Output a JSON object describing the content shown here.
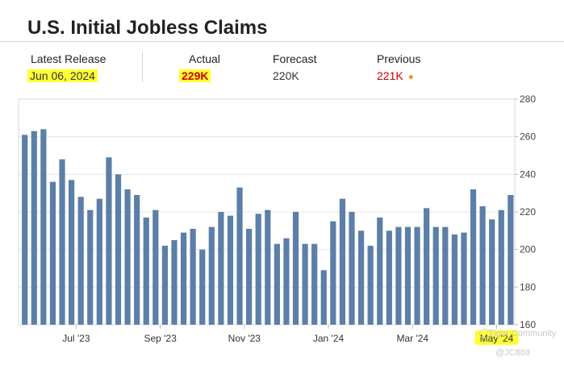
{
  "title": "U.S. Initial Jobless Claims",
  "stats": {
    "latest_release_label": "Latest Release",
    "latest_release_value": "Jun 06, 2024",
    "actual_label": "Actual",
    "actual_value": "229K",
    "forecast_label": "Forecast",
    "forecast_value": "220K",
    "previous_label": "Previous",
    "previous_value": "221K",
    "previous_dot": "●"
  },
  "watermark": {
    "line1": "Tiger Community",
    "line2": "@JC888"
  },
  "colors": {
    "bar": "#5b7fa8",
    "highlight": "#ffff33",
    "negative_red": "#d00000",
    "grid": "#e6e6e6"
  },
  "chart_data": {
    "type": "bar",
    "x_tick_labels": [
      "Jul '23",
      "Sep '23",
      "Nov '23",
      "Jan '24",
      "Mar '24",
      "May '24"
    ],
    "highlighted_x_tick": "May '24",
    "x_tick_after_bar": [
      5,
      14,
      23,
      32,
      41,
      50
    ],
    "y_ticks": [
      160,
      180,
      200,
      220,
      240,
      260,
      280
    ],
    "ylim": [
      160,
      280
    ],
    "values": [
      261,
      263,
      264,
      236,
      248,
      237,
      228,
      221,
      227,
      249,
      240,
      232,
      229,
      217,
      221,
      202,
      205,
      209,
      211,
      200,
      212,
      220,
      218,
      233,
      211,
      219,
      221,
      203,
      206,
      220,
      203,
      203,
      189,
      215,
      227,
      220,
      210,
      202,
      217,
      210,
      212,
      212,
      212,
      222,
      212,
      212,
      208,
      209,
      232,
      223,
      216,
      221,
      229
    ]
  }
}
